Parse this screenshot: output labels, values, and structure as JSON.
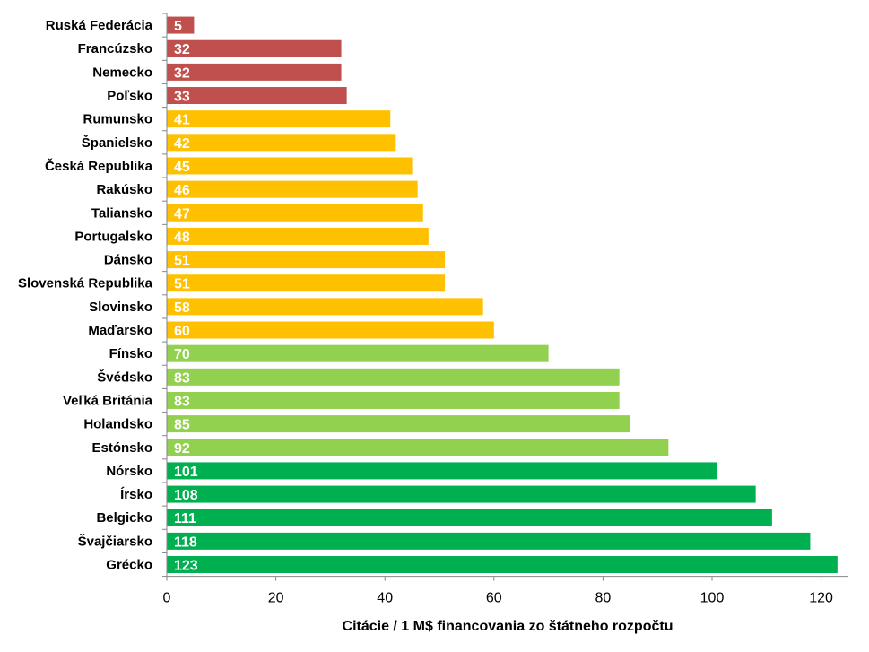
{
  "chart_data": {
    "type": "bar",
    "orientation": "horizontal",
    "xlabel": "Citácie / 1 M$ financovania zo štátneho rozpočtu",
    "ylabel": "",
    "xlim": [
      0,
      125
    ],
    "xticks": [
      0,
      20,
      40,
      60,
      80,
      100,
      120
    ],
    "grid": false,
    "data_labels": true,
    "categories": [
      "Ruská Federácia",
      "Francúzsko",
      "Nemecko",
      "Poľsko",
      "Rumunsko",
      "Španielsko",
      "Česká Republika",
      "Rakúsko",
      "Taliansko",
      "Portugalsko",
      "Dánsko",
      "Slovenská Republika",
      "Slovinsko",
      "Maďarsko",
      "Fínsko",
      "Švédsko",
      "Veľká Británia",
      "Holandsko",
      "Estónsko",
      "Nórsko",
      "Írsko",
      "Belgicko",
      "Švajčiarsko",
      "Grécko"
    ],
    "values": [
      5,
      32,
      32,
      33,
      41,
      42,
      45,
      46,
      47,
      48,
      51,
      51,
      58,
      60,
      70,
      83,
      83,
      85,
      92,
      101,
      108,
      111,
      118,
      123
    ],
    "bar_colors": [
      "#c0504d",
      "#c0504d",
      "#c0504d",
      "#c0504d",
      "#ffc000",
      "#ffc000",
      "#ffc000",
      "#ffc000",
      "#ffc000",
      "#ffc000",
      "#ffc000",
      "#ffc000",
      "#ffc000",
      "#ffc000",
      "#92d050",
      "#92d050",
      "#92d050",
      "#92d050",
      "#92d050",
      "#00b050",
      "#00b050",
      "#00b050",
      "#00b050",
      "#00b050"
    ]
  }
}
